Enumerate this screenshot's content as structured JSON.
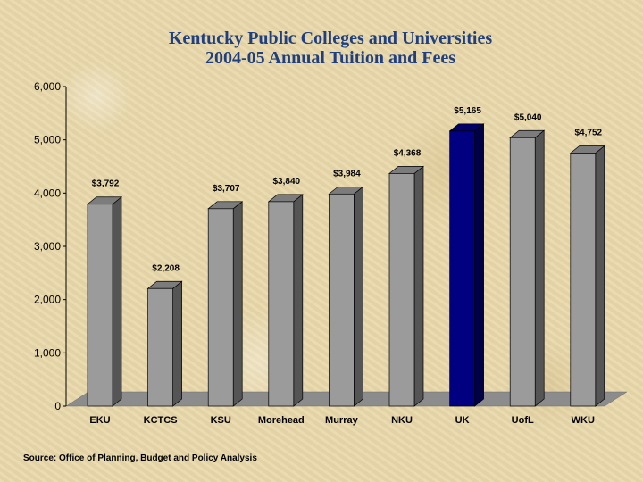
{
  "chart_data": {
    "type": "bar",
    "title": "Kentucky Public Colleges and Universities",
    "subtitle": "2004-05 Annual Tuition and Fees",
    "categories": [
      "EKU",
      "KCTCS",
      "KSU",
      "Morehead",
      "Murray",
      "NKU",
      "UK",
      "UofL",
      "WKU"
    ],
    "values": [
      3792,
      2208,
      3707,
      3840,
      3984,
      4368,
      5165,
      5040,
      4752
    ],
    "data_labels": [
      "$3,792",
      "$2,208",
      "$3,707",
      "$3,840",
      "$3,984",
      "$4,368",
      "$5,165",
      "$5,040",
      "$4,752"
    ],
    "highlight_category": "UK",
    "ylim": [
      0,
      6000
    ],
    "yticks": [
      0,
      1000,
      2000,
      3000,
      4000,
      5000,
      6000
    ],
    "ytick_labels": [
      "0",
      "1,000",
      "2,000",
      "3,000",
      "4,000",
      "5,000",
      "6,000"
    ],
    "grid": false,
    "style": "3d",
    "colors": {
      "bar": "#9b9b9b",
      "bar_highlight": "#000080",
      "floor": "#8c8c8c",
      "title": "#1f3f7f"
    }
  },
  "source_text": "Source:  Office of Planning, Budget and Policy Analysis"
}
